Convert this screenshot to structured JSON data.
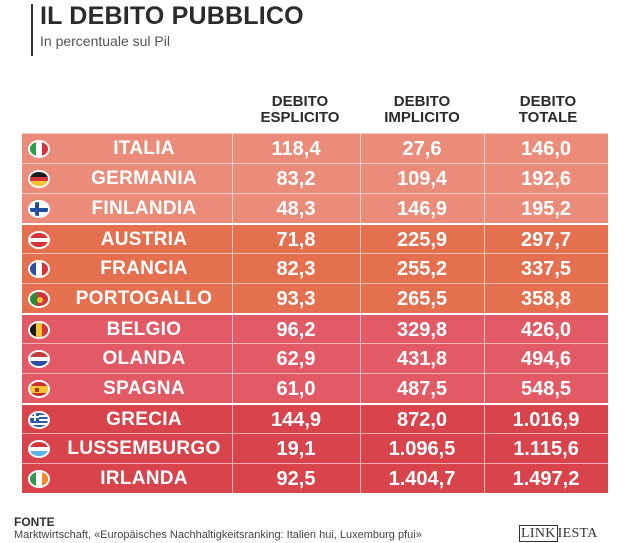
{
  "header": {
    "title": "IL DEBITO PUBBLICO",
    "subtitle": "In percentuale sul Pil"
  },
  "columns": {
    "c1": [
      "DEBITO",
      "ESPLICITO"
    ],
    "c2": [
      "DEBITO",
      "IMPLICITO"
    ],
    "c3": [
      "DEBITO",
      "TOTALE"
    ]
  },
  "chart_data": {
    "type": "table",
    "title": "IL DEBITO PUBBLICO",
    "subtitle": "In percentuale sul Pil",
    "columns": [
      "DEBITO ESPLICITO",
      "DEBITO IMPLICITO",
      "DEBITO TOTALE"
    ],
    "rows": [
      {
        "country": "ITALIA",
        "flag": "it-flag-icon",
        "esplicito": "118,4",
        "implicito": "27,6",
        "totale": "146,0",
        "color": "#ea8c79"
      },
      {
        "country": "GERMANIA",
        "flag": "de-flag-icon",
        "esplicito": "83,2",
        "implicito": "109,4",
        "totale": "192,6",
        "color": "#ea8c79"
      },
      {
        "country": "FINLANDIA",
        "flag": "fi-flag-icon",
        "esplicito": "48,3",
        "implicito": "146,9",
        "totale": "195,2",
        "color": "#ea8c79"
      },
      {
        "country": "AUSTRIA",
        "flag": "at-flag-icon",
        "esplicito": "71,8",
        "implicito": "225,9",
        "totale": "297,7",
        "color": "#e5704f"
      },
      {
        "country": "FRANCIA",
        "flag": "fr-flag-icon",
        "esplicito": "82,3",
        "implicito": "255,2",
        "totale": "337,5",
        "color": "#e5704f"
      },
      {
        "country": "PORTOGALLO",
        "flag": "pt-flag-icon",
        "esplicito": "93,3",
        "implicito": "265,5",
        "totale": "358,8",
        "color": "#e5704f"
      },
      {
        "country": "BELGIO",
        "flag": "be-flag-icon",
        "esplicito": "96,2",
        "implicito": "329,8",
        "totale": "426,0",
        "color": "#e35a67"
      },
      {
        "country": "OLANDA",
        "flag": "nl-flag-icon",
        "esplicito": "62,9",
        "implicito": "431,8",
        "totale": "494,6",
        "color": "#e35a67"
      },
      {
        "country": "SPAGNA",
        "flag": "es-flag-icon",
        "esplicito": "61,0",
        "implicito": "487,5",
        "totale": "548,5",
        "color": "#e35a67"
      },
      {
        "country": "GRECIA",
        "flag": "gr-flag-icon",
        "esplicito": "144,9",
        "implicito": "872,0",
        "totale": "1.016,9",
        "color": "#d9434b"
      },
      {
        "country": "LUSSEMBURGO",
        "flag": "lu-flag-icon",
        "esplicito": "19,1",
        "implicito": "1.096,5",
        "totale": "1.115,6",
        "color": "#d9434b"
      },
      {
        "country": "IRLANDA",
        "flag": "ie-flag-icon",
        "esplicito": "92,5",
        "implicito": "1.404,7",
        "totale": "1.497,2",
        "color": "#d9434b"
      }
    ]
  },
  "footer": {
    "fonte_label": "FONTE",
    "source_text": "Marktwirtschaft, «Europäisches Nachhaltigkeitsranking: Italien hui, Luxemburg pfui»",
    "logo_left": "LINK",
    "logo_right": "IESTA"
  }
}
